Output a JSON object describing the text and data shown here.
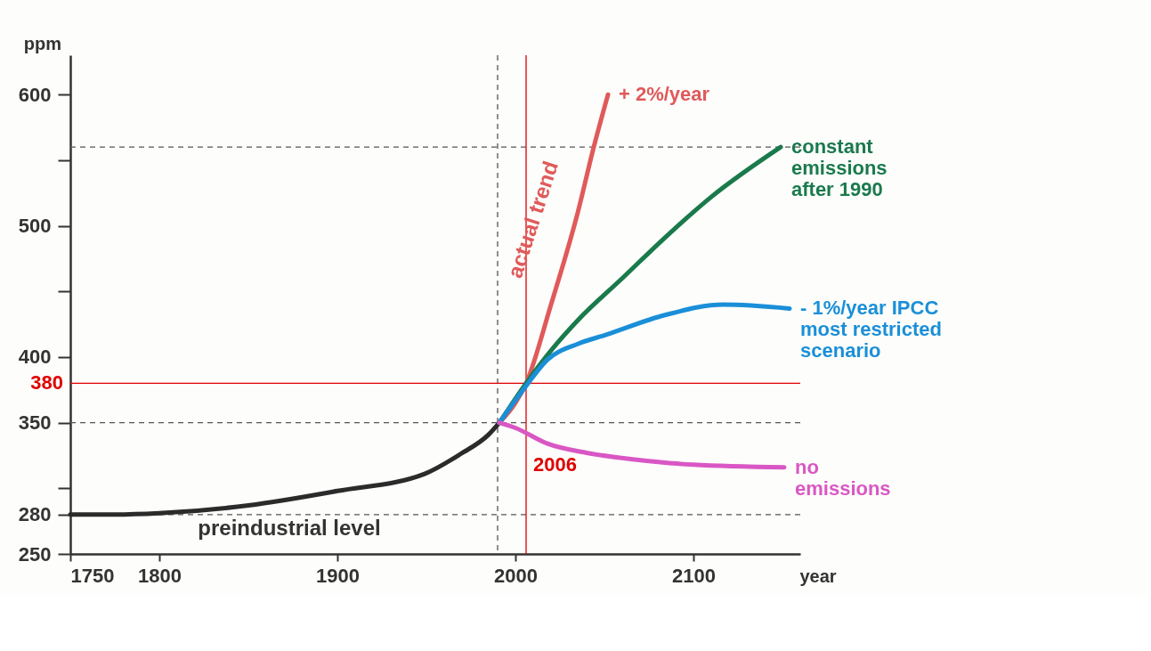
{
  "chart_data": {
    "type": "line",
    "xlabel": "year",
    "ylabel": "ppm",
    "xlim": [
      1750,
      2160
    ],
    "xticks": [
      1750,
      1800,
      1900,
      2000,
      2100
    ],
    "ylim": [
      250,
      630
    ],
    "yticks": [
      250,
      280,
      {
        "value": 300,
        "label": null
      },
      350,
      400,
      {
        "value": 450,
        "label": null
      },
      500,
      {
        "value": 550,
        "label": null
      },
      600
    ],
    "series": [
      {
        "color": "#2b2b2b",
        "x": [
          1750,
          1775,
          1800,
          1850,
          1900,
          1949,
          1969,
          1985,
          1991
        ],
        "values": [
          280,
          280,
          281,
          287,
          298,
          311,
          326,
          341,
          350
        ]
      },
      {
        "name": "+ 2%/year",
        "color": "#e05a5a",
        "x": [
          1991,
          2000,
          2006,
          2020,
          2035,
          2044,
          2052
        ],
        "values": [
          350,
          365,
          380,
          440,
          510,
          560,
          600
        ]
      },
      {
        "name": "constant\nemissions\nafter 1990",
        "color": "#1a7a4c",
        "x": [
          1991,
          2006,
          2020,
          2035,
          2060,
          2084,
          2110,
          2149
        ],
        "values": [
          350,
          380,
          405,
          428,
          460,
          491,
          522,
          560
        ]
      },
      {
        "name": "- 1%/year IPCC\nmost restricted\nscenario",
        "color": "#1a8fd8",
        "x": [
          1991,
          2006,
          2018,
          2035,
          2051,
          2084,
          2117,
          2154
        ],
        "values": [
          350,
          378,
          398,
          410,
          417,
          432,
          440,
          437
        ]
      },
      {
        "name": "no\nemissions",
        "color": "#d957c4",
        "x": [
          1991,
          2000,
          2018,
          2040,
          2067,
          2100,
          2151
        ],
        "values": [
          350,
          346,
          334,
          327,
          322,
          318,
          316
        ]
      }
    ],
    "ref_lines": [
      {
        "axis": "y",
        "value": 280,
        "label": null,
        "color": "#555555",
        "line_style": "dashed"
      },
      {
        "axis": "y",
        "value": 350,
        "label": null,
        "color": "#555555",
        "line_style": "dashed"
      },
      {
        "axis": "y",
        "value": 560,
        "label": null,
        "color": "#555555",
        "line_style": "dashed"
      },
      {
        "axis": "x",
        "value": 1990,
        "label": null,
        "color": "#555555",
        "line_style": "dashed"
      },
      {
        "axis": "y",
        "value": 380,
        "label": "380",
        "color": "#e00000",
        "line_style": "solid"
      },
      {
        "axis": "x",
        "value": 2006,
        "label": "2006",
        "color": "#e00000",
        "line_style": "solid"
      }
    ],
    "annotations": [
      "actual trend",
      "preindustrial level"
    ],
    "grid": false,
    "legend": false,
    "marker": "none",
    "line_style": "solid"
  }
}
